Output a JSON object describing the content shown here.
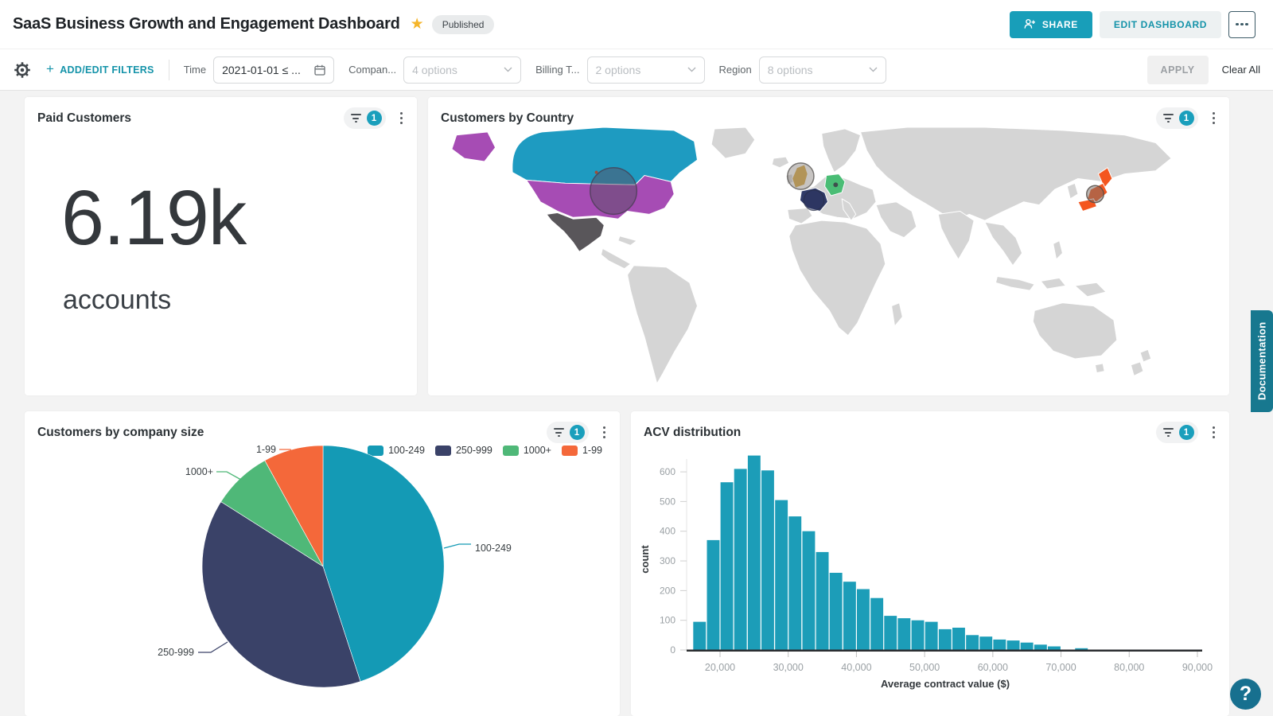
{
  "header": {
    "title": "SaaS Business Growth and Engagement Dashboard",
    "status_badge": "Published",
    "share_button": "SHARE",
    "edit_button": "EDIT DASHBOARD"
  },
  "filter_bar": {
    "add_edit_filters": "ADD/EDIT FILTERS",
    "filters": [
      {
        "label": "Time",
        "value": "2021-01-01 ≤ ..."
      },
      {
        "label": "Compan...",
        "value": "4 options"
      },
      {
        "label": "Billing T...",
        "value": "2 options"
      },
      {
        "label": "Region",
        "value": "8 options"
      }
    ],
    "apply_button": "APPLY",
    "clear_all": "Clear All"
  },
  "panels": {
    "paid_customers": {
      "title": "Paid Customers",
      "filter_count": "1",
      "value": "6.19k",
      "unit": "accounts"
    },
    "customers_by_country": {
      "title": "Customers by Country",
      "filter_count": "1"
    },
    "company_size": {
      "title": "Customers by company size",
      "filter_count": "1"
    },
    "acv": {
      "title": "ACV distribution",
      "filter_count": "1"
    }
  },
  "chart_data": [
    {
      "type": "choropleth",
      "title": "Customers by Country",
      "base_land_color": "#d5d5d5",
      "highlighted_countries": [
        {
          "name": "Canada",
          "color": "#1E9BC1"
        },
        {
          "name": "United States",
          "color": "#A64CB4"
        },
        {
          "name": "Mexico",
          "color": "#59565A"
        },
        {
          "name": "United Kingdom",
          "color": "#D9A83E"
        },
        {
          "name": "France",
          "color": "#2F3A68"
        },
        {
          "name": "Germany",
          "color": "#4ABD75"
        },
        {
          "name": "Japan",
          "color": "#F4561F"
        }
      ],
      "bubble_markers_on": [
        "United States",
        "United Kingdom",
        "France",
        "Germany",
        "Japan"
      ]
    },
    {
      "type": "pie",
      "title": "Customers by company size",
      "categories": [
        "100-249",
        "250-999",
        "1000+",
        "1-99"
      ],
      "values_pct": [
        45,
        39,
        8,
        8
      ],
      "colors": [
        "#149AB5",
        "#3A4268",
        "#4FB878",
        "#F4683A"
      ],
      "legend_position": "top-right",
      "labels_on_chart": true
    },
    {
      "type": "bar",
      "subtype": "histogram",
      "title": "ACV distribution",
      "xlabel": "Average contract value ($)",
      "ylabel": "count",
      "bar_color": "#1C9DB8",
      "bin_start": 16000,
      "bin_width": 2000,
      "values": [
        95,
        370,
        565,
        610,
        655,
        605,
        505,
        450,
        400,
        330,
        260,
        230,
        205,
        175,
        115,
        107,
        100,
        95,
        70,
        75,
        50,
        45,
        35,
        32,
        25,
        18,
        12,
        0,
        6
      ],
      "ylim": [
        0,
        670
      ],
      "yticks": [
        0,
        100,
        200,
        300,
        400,
        500,
        600
      ],
      "ytick_labels": [
        "0",
        "100",
        "200",
        "300",
        "400",
        "500",
        "600"
      ],
      "xticks": [
        20000,
        30000,
        40000,
        50000,
        60000,
        70000,
        80000,
        90000
      ],
      "xtick_labels": [
        "20,000",
        "30,000",
        "40,000",
        "50,000",
        "60,000",
        "70,000",
        "80,000",
        "90,000"
      ],
      "grid": false
    }
  ],
  "side": {
    "documentation_tab": "Documentation",
    "help_button": "?"
  }
}
